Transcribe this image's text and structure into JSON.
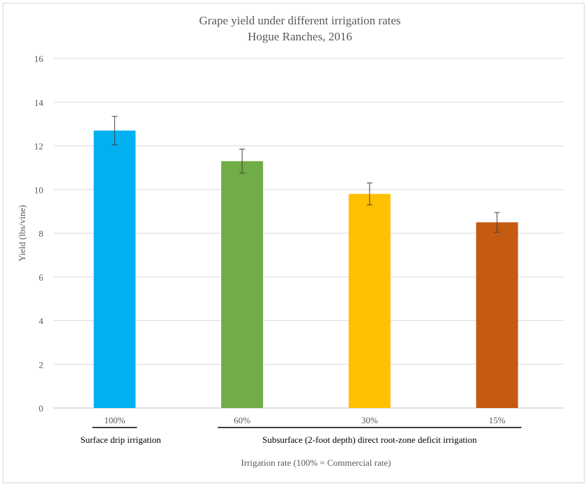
{
  "chart_data": {
    "type": "bar",
    "title": "Grape yield under different irrigation rates",
    "subtitle": "Hogue Ranches, 2016",
    "xlabel": "Irrigation rate (100% = Commercial rate)",
    "ylabel": "Yield (lbs/vine)",
    "ylim": [
      0,
      16
    ],
    "yticks": [
      "0",
      "2",
      "4",
      "6",
      "8",
      "10",
      "12",
      "14",
      "16"
    ],
    "grid": true,
    "categories": [
      "100%",
      "60%",
      "30%",
      "15%"
    ],
    "values": [
      12.7,
      11.3,
      9.8,
      8.5
    ],
    "error": [
      0.65,
      0.55,
      0.5,
      0.45
    ],
    "colors": [
      "#00B0F0",
      "#70AD47",
      "#FFC000",
      "#C55A11"
    ],
    "groups": [
      {
        "label": "Surface drip irrigation",
        "categories": [
          "100%"
        ]
      },
      {
        "label": "Subsurface (2-foot depth) direct root-zone deficit irrigation",
        "categories": [
          "60%",
          "30%",
          "15%"
        ]
      }
    ]
  }
}
